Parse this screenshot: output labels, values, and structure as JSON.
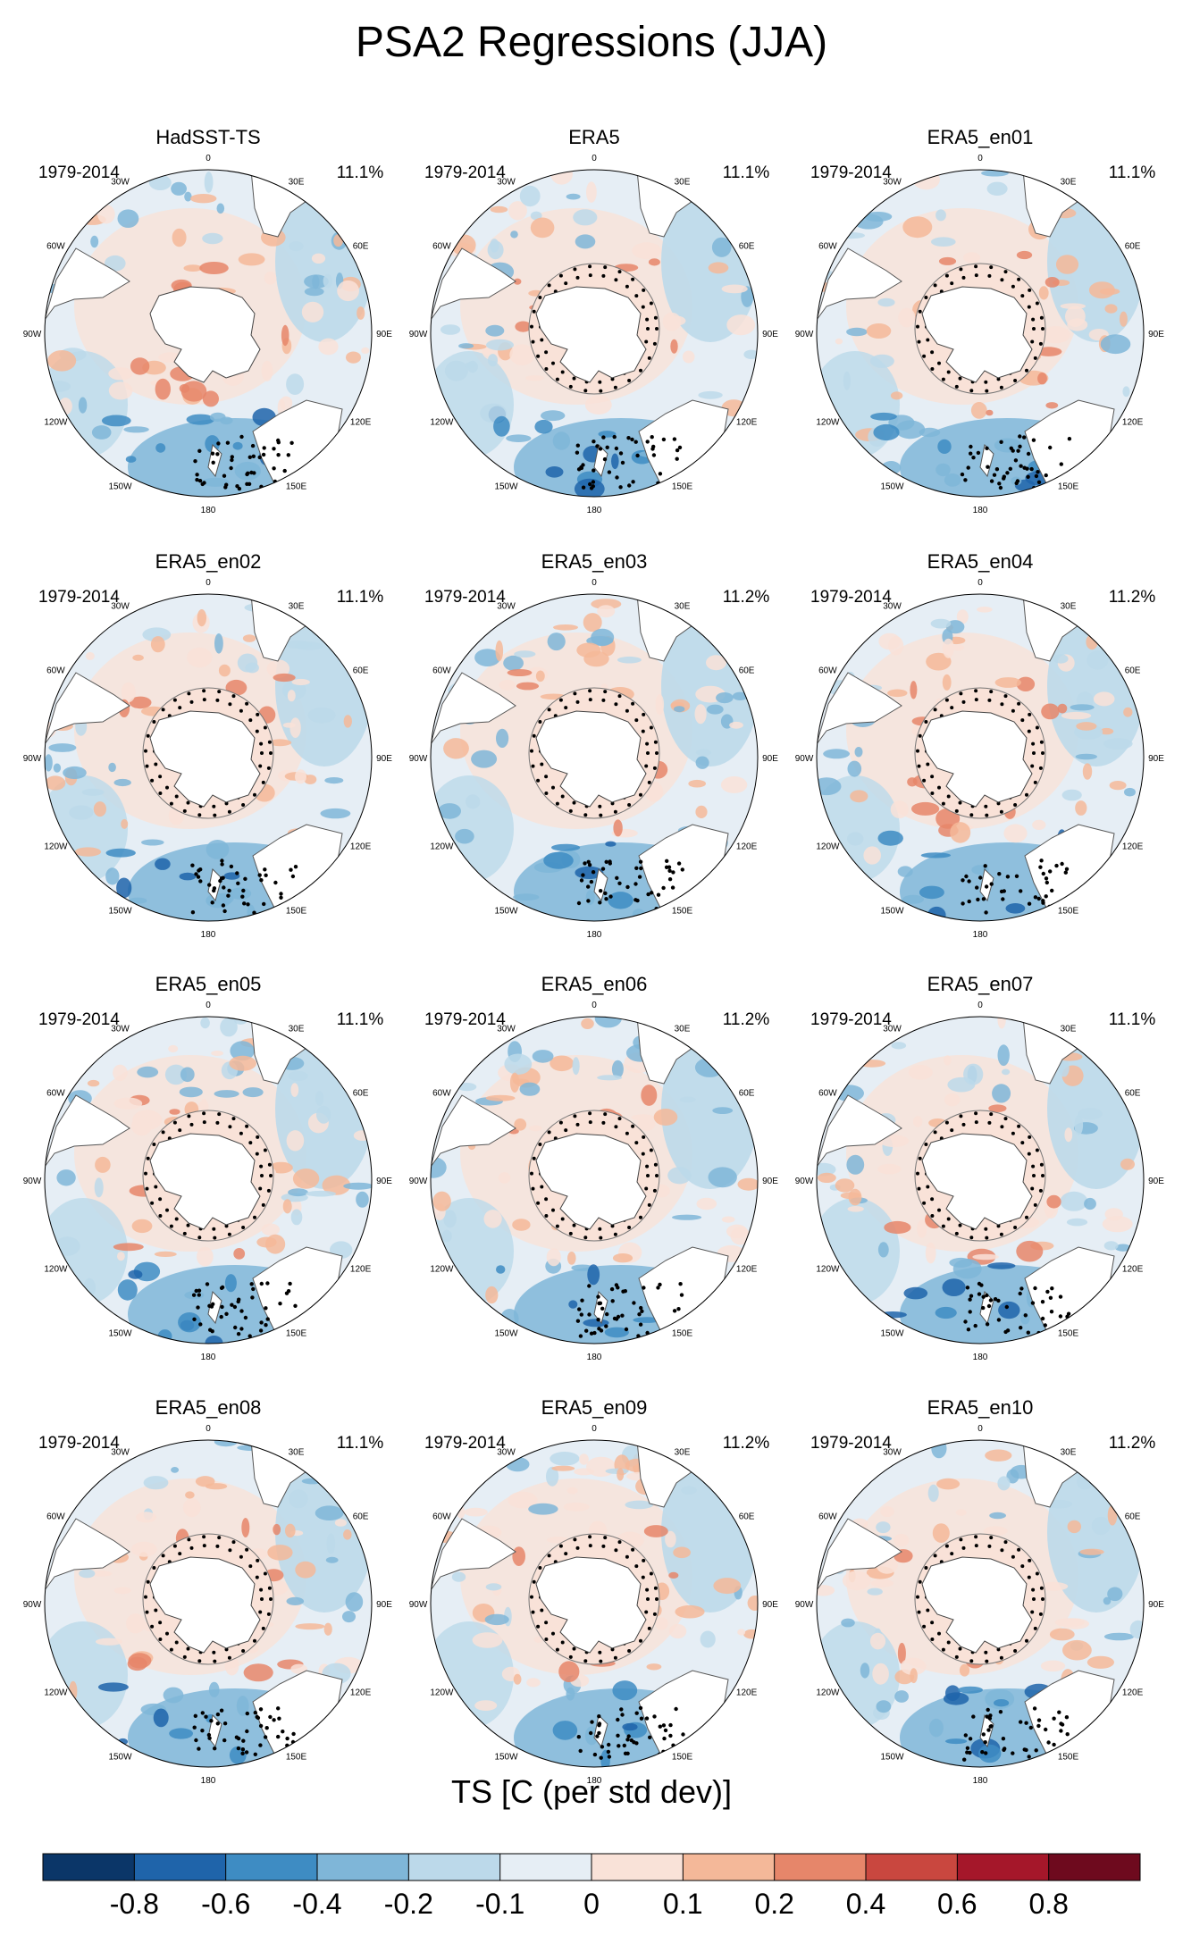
{
  "title": "PSA2 Regressions (JJA)",
  "chart_data": {
    "type": "polar-map-grid",
    "title": "PSA2 Regressions (JJA)",
    "period": "1979-2014",
    "variable": "TS [C (per std dev)]",
    "panels": [
      {
        "name": "HadSST-TS",
        "period": "1979-2014",
        "percent": "11.1%"
      },
      {
        "name": "ERA5",
        "period": "1979-2014",
        "percent": "11.1%"
      },
      {
        "name": "ERA5_en01",
        "period": "1979-2014",
        "percent": "11.1%"
      },
      {
        "name": "ERA5_en02",
        "period": "1979-2014",
        "percent": "11.1%"
      },
      {
        "name": "ERA5_en03",
        "period": "1979-2014",
        "percent": "11.2%"
      },
      {
        "name": "ERA5_en04",
        "period": "1979-2014",
        "percent": "11.2%"
      },
      {
        "name": "ERA5_en05",
        "period": "1979-2014",
        "percent": "11.1%"
      },
      {
        "name": "ERA5_en06",
        "period": "1979-2014",
        "percent": "11.2%"
      },
      {
        "name": "ERA5_en07",
        "period": "1979-2014",
        "percent": "11.1%"
      },
      {
        "name": "ERA5_en08",
        "period": "1979-2014",
        "percent": "11.1%"
      },
      {
        "name": "ERA5_en09",
        "period": "1979-2014",
        "percent": "11.2%"
      },
      {
        "name": "ERA5_en10",
        "period": "1979-2014",
        "percent": "11.2%"
      }
    ],
    "longitude_labels": [
      "0",
      "30E",
      "60E",
      "90E",
      "120E",
      "150E",
      "180",
      "150W",
      "120W",
      "90W",
      "60W",
      "30W"
    ],
    "colorbar": {
      "title": "TS [C (per std dev)]",
      "levels": [
        "-0.8",
        "-0.6",
        "-0.4",
        "-0.2",
        "-0.1",
        "0",
        "0.1",
        "0.2",
        "0.4",
        "0.6",
        "0.8"
      ],
      "colors": [
        "#0b3668",
        "#1f64aa",
        "#3e8cc3",
        "#7fb6d8",
        "#bcd9ea",
        "#e6eef5",
        "#f9e2d8",
        "#f4b899",
        "#e6866a",
        "#c9473f",
        "#a5172a",
        "#6e0a1e"
      ]
    }
  }
}
